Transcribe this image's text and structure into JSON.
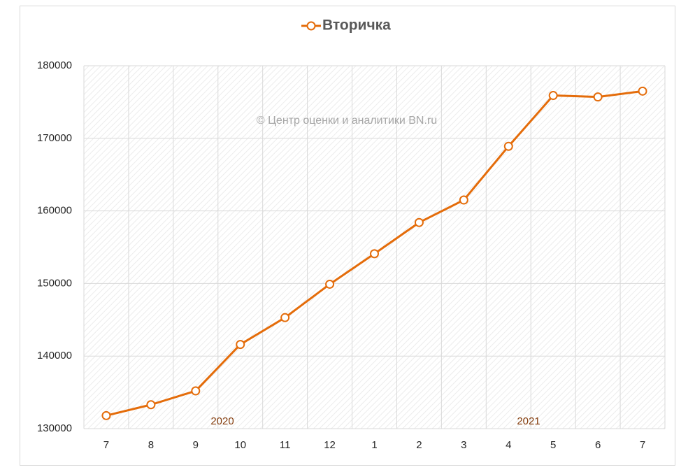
{
  "chart_data": {
    "type": "line",
    "categories": [
      "7",
      "8",
      "9",
      "10",
      "11",
      "12",
      "1",
      "2",
      "3",
      "4",
      "5",
      "6",
      "7"
    ],
    "series": [
      {
        "name": "Вторичка",
        "color": "#e46c0a",
        "values": [
          131800,
          133300,
          135200,
          141600,
          145300,
          149900,
          154100,
          158400,
          161500,
          168900,
          175900,
          175700,
          176500
        ]
      }
    ],
    "ylim": [
      130000,
      180000
    ],
    "yticks": [
      130000,
      140000,
      150000,
      160000,
      170000,
      180000
    ],
    "grid": true,
    "watermark": "© Центр оценки и аналитики BN.ru",
    "annotations": [
      "2020",
      "2021"
    ]
  }
}
